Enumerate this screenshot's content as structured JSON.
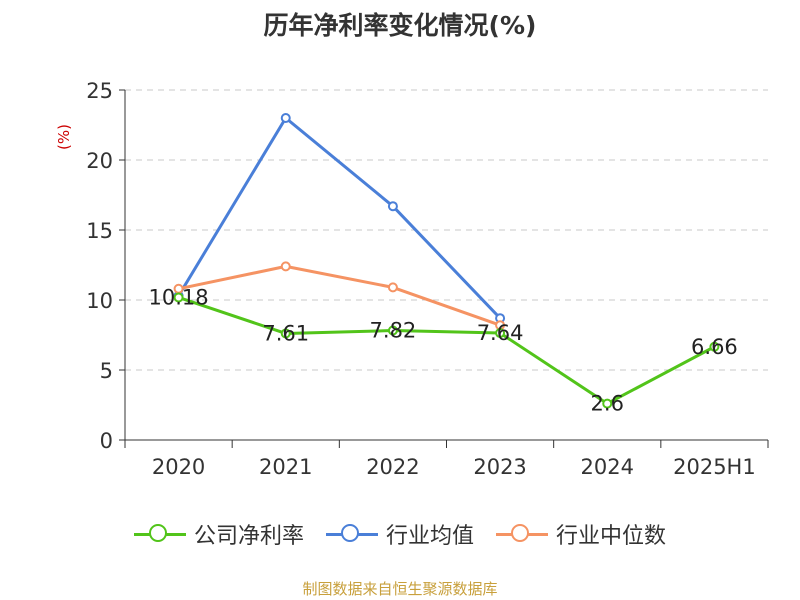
{
  "chart_data": {
    "type": "line",
    "title": "历年净利率变化情况(%)",
    "ylabel": "(%)",
    "categories": [
      "2020",
      "2021",
      "2022",
      "2023",
      "2024",
      "2025H1"
    ],
    "ylim": [
      0,
      25
    ],
    "yticks": [
      "0",
      "5",
      "10",
      "15",
      "20",
      "25"
    ],
    "grid": true,
    "legend_position": "bottom",
    "series": [
      {
        "name": "公司净利率",
        "color": "#52c41a",
        "values": [
          10.18,
          7.61,
          7.82,
          7.64,
          2.6,
          6.66
        ],
        "labels": [
          "10.18",
          "7.61",
          "7.82",
          "7.64",
          "2.6",
          "6.66"
        ]
      },
      {
        "name": "行业均值",
        "color": "#4a7fd8",
        "values": [
          10.3,
          23.0,
          16.7,
          8.7,
          null,
          null
        ]
      },
      {
        "name": "行业中位数",
        "color": "#f59363",
        "values": [
          10.8,
          12.4,
          10.9,
          8.2,
          null,
          null
        ]
      }
    ]
  },
  "source": "制图数据来自恒生聚源数据库"
}
